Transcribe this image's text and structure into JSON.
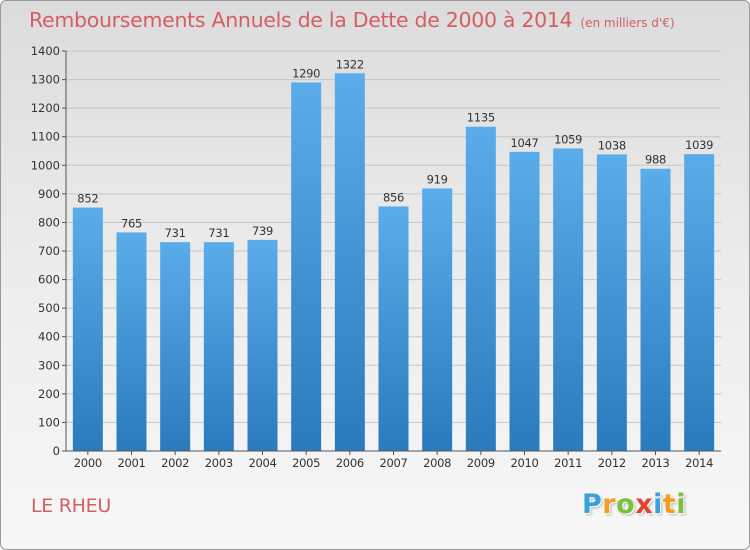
{
  "chart_data": {
    "type": "bar",
    "title": "Remboursements Annuels de la Dette de 2000 à 2014",
    "subtitle": "(en milliers d'€)",
    "categories": [
      "2000",
      "2001",
      "2002",
      "2003",
      "2004",
      "2005",
      "2006",
      "2007",
      "2008",
      "2009",
      "2010",
      "2011",
      "2012",
      "2013",
      "2014"
    ],
    "values": [
      852,
      765,
      731,
      731,
      739,
      1290,
      1322,
      856,
      919,
      1135,
      1047,
      1059,
      1038,
      988,
      1039
    ],
    "ylim": [
      0,
      1400
    ],
    "yticks": [
      0,
      100,
      200,
      300,
      400,
      500,
      600,
      700,
      800,
      900,
      1000,
      1100,
      1200,
      1300,
      1400
    ],
    "grid": true,
    "bar_color_top": "#5aacea",
    "bar_color_bottom": "#2a7bbd"
  },
  "footer": {
    "commune": "LE RHEU",
    "logo_letters": [
      {
        "char": "P",
        "color": "#3aa0d8"
      },
      {
        "char": "r",
        "color": "#f0a020"
      },
      {
        "char": "o",
        "color": "#7bbf3a"
      },
      {
        "char": "x",
        "color": "#e0452d"
      },
      {
        "char": "i",
        "color": "#3aa0d8"
      },
      {
        "char": "t",
        "color": "#f0a020"
      },
      {
        "char": "i",
        "color": "#7bbf3a"
      }
    ]
  }
}
